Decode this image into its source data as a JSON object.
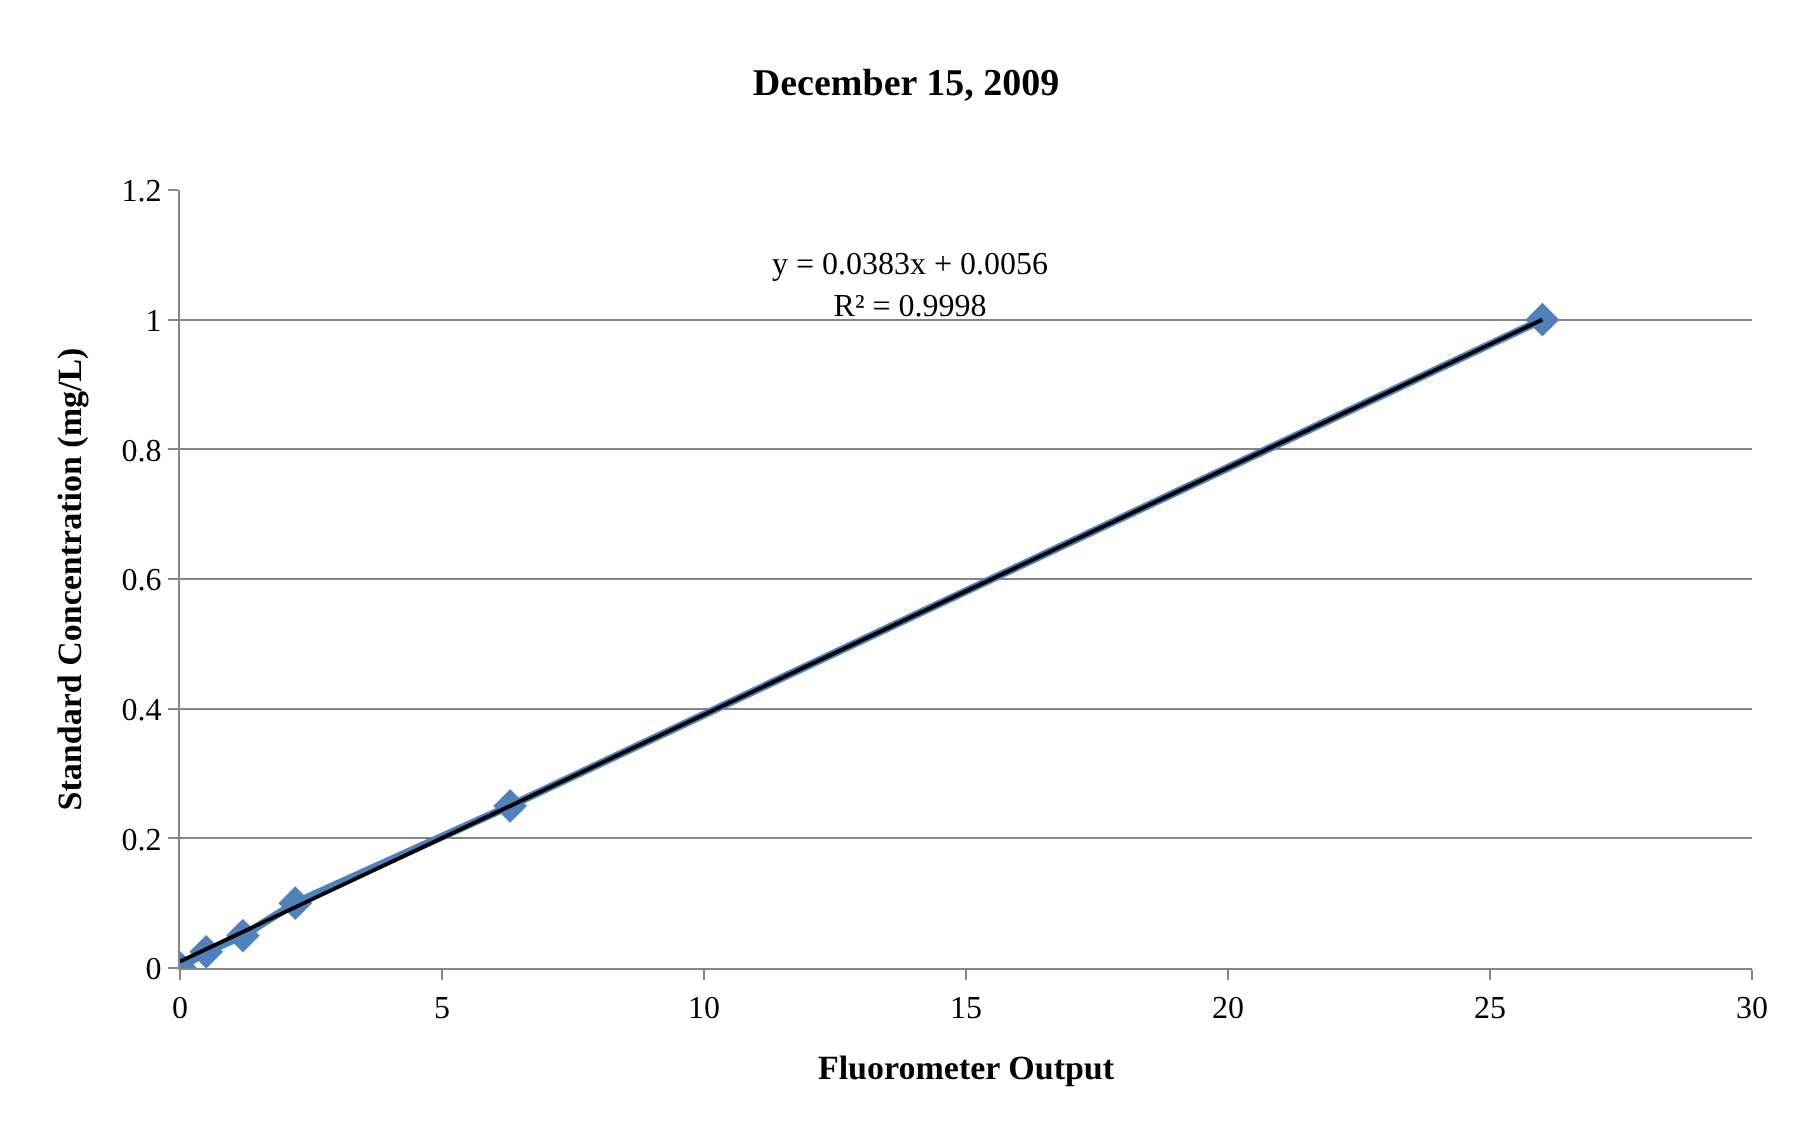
{
  "chart_data": {
    "type": "line",
    "title": "December 15, 2009",
    "xlabel": "Fluorometer Output",
    "ylabel": "Standard Concentration (mg/L)",
    "x": [
      0,
      0.5,
      1.2,
      2.2,
      6.3,
      26
    ],
    "series": [
      {
        "color": "#4f81bd",
        "values": [
          0,
          0.025,
          0.05,
          0.1,
          0.25,
          1
        ],
        "marker": "diamond"
      },
      {
        "type": "line",
        "color": "#000000",
        "x": [
          0,
          26
        ],
        "values": [
          0.01,
          1.0
        ],
        "marker": "none"
      }
    ],
    "annotations": [
      "y = 0.0383x + 0.0056\nR² = 0.9998"
    ],
    "xlim": [
      0,
      30
    ],
    "xticks": [
      0,
      5,
      10,
      15,
      20,
      25,
      30
    ],
    "ylim": [
      0,
      1.2
    ],
    "yticks": [
      0,
      0.2,
      0.4,
      0.6,
      0.8,
      1,
      1.2
    ],
    "grid": "y"
  }
}
